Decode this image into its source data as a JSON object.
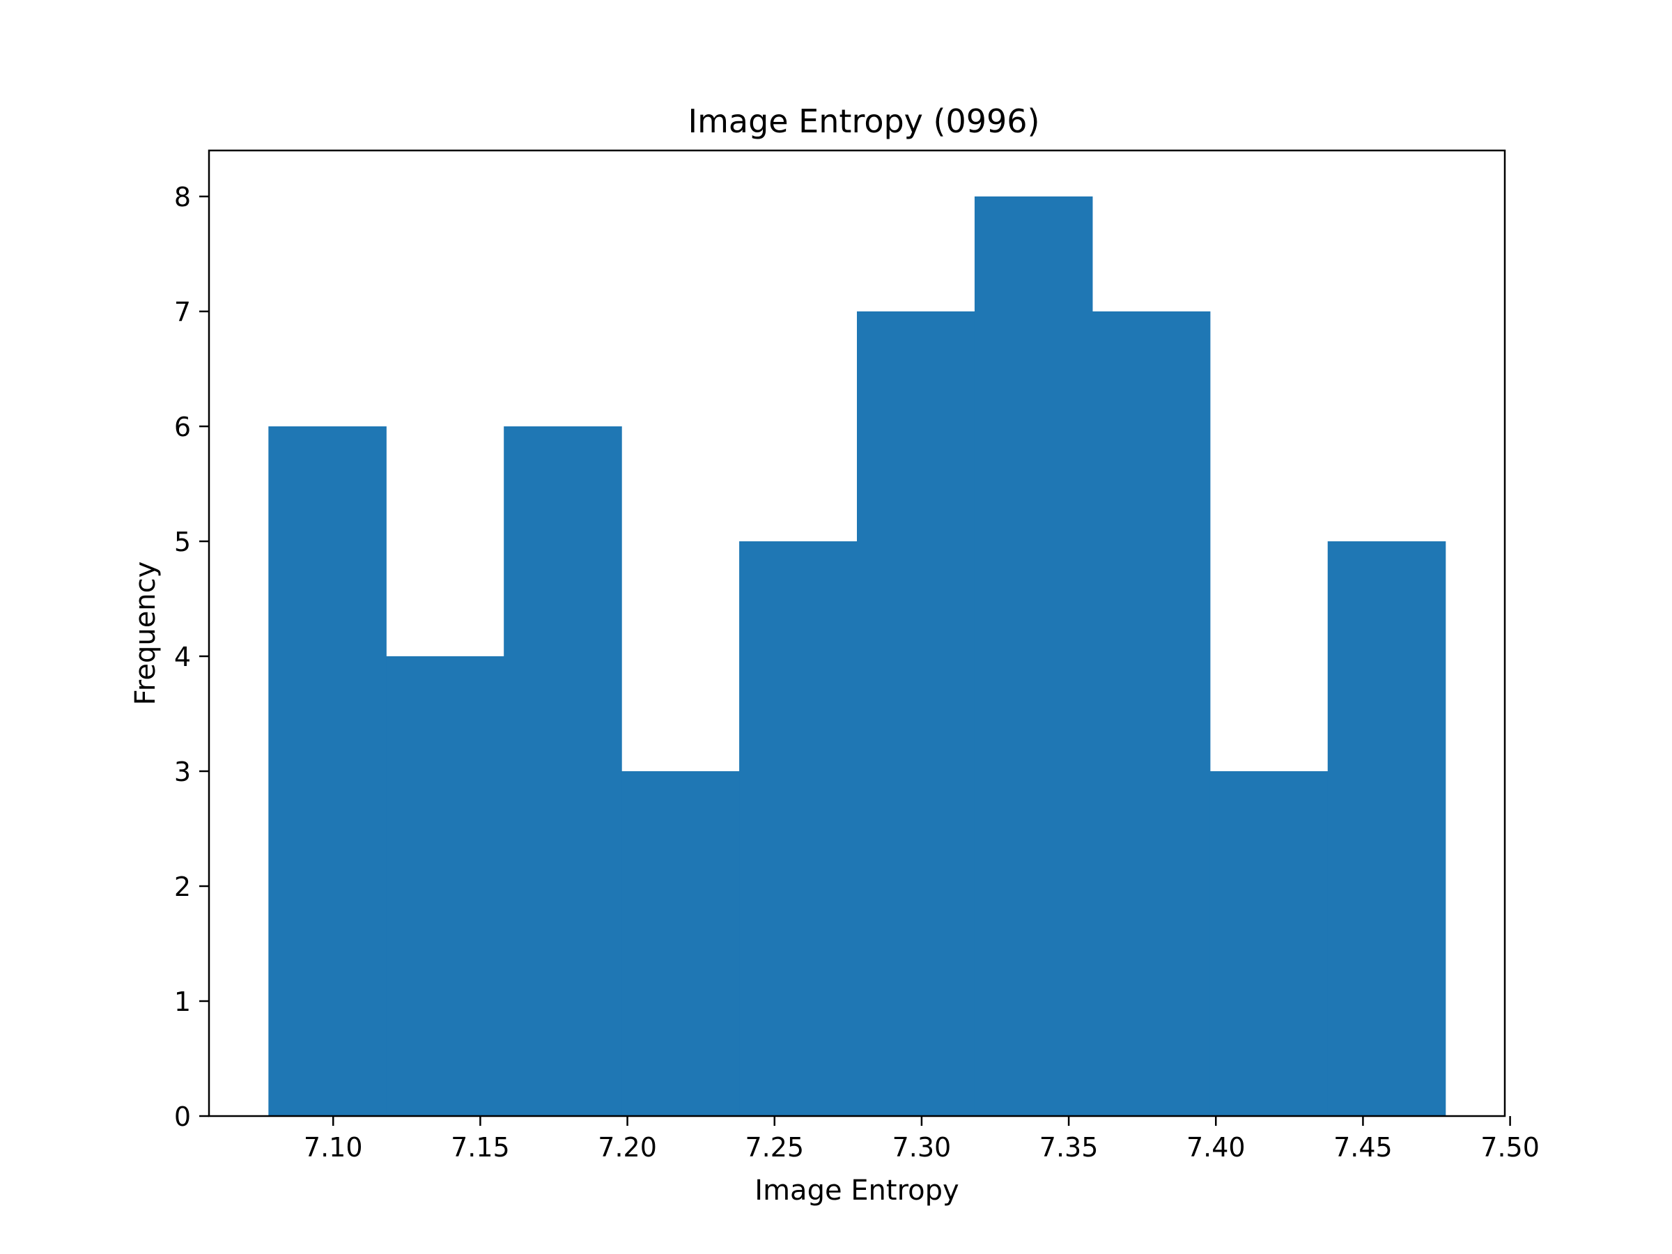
{
  "chart_data": {
    "type": "bar",
    "title": "Image Entropy (0996)",
    "xlabel": "Image Entropy",
    "ylabel": "Frequency",
    "bins": [
      {
        "start": 7.078,
        "end": 7.118,
        "count": 6
      },
      {
        "start": 7.118,
        "end": 7.158,
        "count": 4
      },
      {
        "start": 7.158,
        "end": 7.198,
        "count": 6
      },
      {
        "start": 7.198,
        "end": 7.238,
        "count": 3
      },
      {
        "start": 7.238,
        "end": 7.278,
        "count": 5
      },
      {
        "start": 7.278,
        "end": 7.318,
        "count": 7
      },
      {
        "start": 7.318,
        "end": 7.358,
        "count": 8
      },
      {
        "start": 7.358,
        "end": 7.398,
        "count": 7
      },
      {
        "start": 7.398,
        "end": 7.438,
        "count": 3
      },
      {
        "start": 7.438,
        "end": 7.478,
        "count": 5
      }
    ],
    "xlim": [
      7.0578,
      7.4982
    ],
    "ylim": [
      0,
      8.4
    ],
    "xticks": [
      "7.10",
      "7.15",
      "7.20",
      "7.25",
      "7.30",
      "7.35",
      "7.40",
      "7.45",
      "7.50"
    ],
    "yticks": [
      "0",
      "1",
      "2",
      "3",
      "4",
      "5",
      "6",
      "7",
      "8"
    ],
    "bar_color": "#1f77b4",
    "grid": false,
    "legend": "none"
  }
}
